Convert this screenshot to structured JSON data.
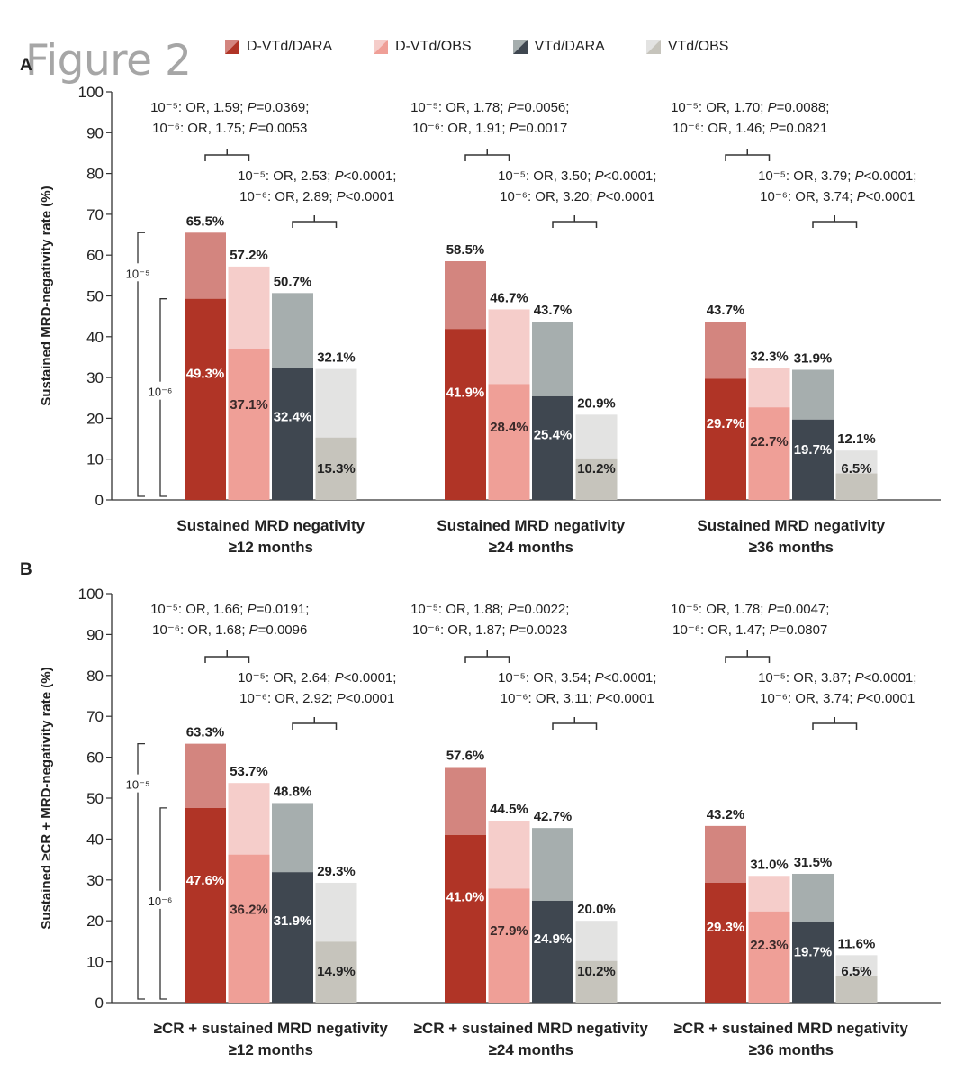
{
  "figure_title": "Figure 2",
  "colors": {
    "dvtd_dara_light": "#d3857f",
    "dvtd_dara_dark": "#b03426",
    "dvtd_obs_light": "#f5cdca",
    "dvtd_obs_dark": "#ef9f97",
    "vtd_dara_light": "#a6aeae",
    "vtd_dara_dark": "#3f4750",
    "vtd_obs_light": "#e3e3e2",
    "vtd_obs_dark": "#c6c4bc"
  },
  "legend": [
    {
      "label": "D-VTd/DARA",
      "color_light": "#d3857f",
      "color_dark": "#b03426"
    },
    {
      "label": "D-VTd/OBS",
      "color_light": "#f5cdca",
      "color_dark": "#ef9f97"
    },
    {
      "label": "VTd/DARA",
      "color_light": "#a6aeae",
      "color_dark": "#3f4750"
    },
    {
      "label": "VTd/OBS",
      "color_light": "#e3e3e2",
      "color_dark": "#c6c4bc"
    }
  ],
  "chart_data": [
    {
      "panel": "A",
      "type": "bar",
      "ylabel": "Sustained MRD-negativity rate (%)",
      "ylim": [
        0,
        100
      ],
      "yticks": [
        0,
        10,
        20,
        30,
        40,
        50,
        60,
        70,
        80,
        90,
        100
      ],
      "threshold_labels": {
        "outer": "10⁻⁵",
        "inner": "10⁻⁶"
      },
      "groups": [
        {
          "category": [
            "Sustained MRD negativity",
            "≥12 months"
          ],
          "series": [
            {
              "name": "D-VTd/DARA",
              "total": 65.5,
              "inner": 49.3,
              "total_label": "65.5%",
              "inner_label": "49.3%"
            },
            {
              "name": "D-VTd/OBS",
              "total": 57.2,
              "inner": 37.1,
              "total_label": "57.2%",
              "inner_label": "37.1%"
            },
            {
              "name": "VTd/DARA",
              "total": 50.7,
              "inner": 32.4,
              "total_label": "50.7%",
              "inner_label": "32.4%"
            },
            {
              "name": "VTd/OBS",
              "total": 32.1,
              "inner": 15.3,
              "total_label": "32.1%",
              "inner_label": "15.3%"
            }
          ],
          "stat1": {
            "l1a": "10⁻⁵: OR, 1.59; ",
            "l1p": "P",
            "l1b": "=0.0369;",
            "l2a": "10⁻⁶: OR, 1.75; ",
            "l2p": "P",
            "l2b": "=0.0053"
          },
          "stat2": {
            "l1a": "10⁻⁵: OR, 2.53; ",
            "l1p": "P",
            "l1b": "<0.0001;",
            "l2a": "10⁻⁶: OR, 2.89; ",
            "l2p": "P",
            "l2b": "<0.0001"
          }
        },
        {
          "category": [
            "Sustained MRD negativity",
            "≥24 months"
          ],
          "series": [
            {
              "name": "D-VTd/DARA",
              "total": 58.5,
              "inner": 41.9,
              "total_label": "58.5%",
              "inner_label": "41.9%"
            },
            {
              "name": "D-VTd/OBS",
              "total": 46.7,
              "inner": 28.4,
              "total_label": "46.7%",
              "inner_label": "28.4%"
            },
            {
              "name": "VTd/DARA",
              "total": 43.7,
              "inner": 25.4,
              "total_label": "43.7%",
              "inner_label": "25.4%"
            },
            {
              "name": "VTd/OBS",
              "total": 20.9,
              "inner": 10.2,
              "total_label": "20.9%",
              "inner_label": "10.2%"
            }
          ],
          "stat1": {
            "l1a": "10⁻⁵: OR, 1.78; ",
            "l1p": "P",
            "l1b": "=0.0056;",
            "l2a": "10⁻⁶: OR, 1.91; ",
            "l2p": "P",
            "l2b": "=0.0017"
          },
          "stat2": {
            "l1a": "10⁻⁵: OR, 3.50; ",
            "l1p": "P",
            "l1b": "<0.0001;",
            "l2a": "10⁻⁶: OR, 3.20; ",
            "l2p": "P",
            "l2b": "<0.0001"
          }
        },
        {
          "category": [
            "Sustained MRD negativity",
            "≥36 months"
          ],
          "series": [
            {
              "name": "D-VTd/DARA",
              "total": 43.7,
              "inner": 29.7,
              "total_label": "43.7%",
              "inner_label": "29.7%"
            },
            {
              "name": "D-VTd/OBS",
              "total": 32.3,
              "inner": 22.7,
              "total_label": "32.3%",
              "inner_label": "22.7%"
            },
            {
              "name": "VTd/DARA",
              "total": 31.9,
              "inner": 19.7,
              "total_label": "31.9%",
              "inner_label": "19.7%"
            },
            {
              "name": "VTd/OBS",
              "total": 12.1,
              "inner": 6.5,
              "total_label": "12.1%",
              "inner_label": "6.5%"
            }
          ],
          "stat1": {
            "l1a": "10⁻⁵: OR, 1.70; ",
            "l1p": "P",
            "l1b": "=0.0088;",
            "l2a": "10⁻⁶: OR, 1.46; ",
            "l2p": "P",
            "l2b": "=0.0821"
          },
          "stat2": {
            "l1a": "10⁻⁵: OR, 3.79; ",
            "l1p": "P",
            "l1b": "<0.0001;",
            "l2a": "10⁻⁶: OR, 3.74; ",
            "l2p": "P",
            "l2b": "<0.0001"
          }
        }
      ]
    },
    {
      "panel": "B",
      "type": "bar",
      "ylabel": "Sustained ≥CR + MRD-negativity rate (%)",
      "ylim": [
        0,
        100
      ],
      "yticks": [
        0,
        10,
        20,
        30,
        40,
        50,
        60,
        70,
        80,
        90,
        100
      ],
      "threshold_labels": {
        "outer": "10⁻⁵",
        "inner": "10⁻⁶"
      },
      "groups": [
        {
          "category": [
            "≥CR + sustained MRD negativity",
            "≥12 months"
          ],
          "series": [
            {
              "name": "D-VTd/DARA",
              "total": 63.3,
              "inner": 47.6,
              "total_label": "63.3%",
              "inner_label": "47.6%"
            },
            {
              "name": "D-VTd/OBS",
              "total": 53.7,
              "inner": 36.2,
              "total_label": "53.7%",
              "inner_label": "36.2%"
            },
            {
              "name": "VTd/DARA",
              "total": 48.8,
              "inner": 31.9,
              "total_label": "48.8%",
              "inner_label": "31.9%"
            },
            {
              "name": "VTd/OBS",
              "total": 29.3,
              "inner": 14.9,
              "total_label": "29.3%",
              "inner_label": "14.9%"
            }
          ],
          "stat1": {
            "l1a": "10⁻⁵: OR, 1.66; ",
            "l1p": "P",
            "l1b": "=0.0191;",
            "l2a": "10⁻⁶: OR, 1.68; ",
            "l2p": "P",
            "l2b": "=0.0096"
          },
          "stat2": {
            "l1a": "10⁻⁵: OR, 2.64; ",
            "l1p": "P",
            "l1b": "<0.0001;",
            "l2a": "10⁻⁶: OR, 2.92; ",
            "l2p": "P",
            "l2b": "<0.0001"
          }
        },
        {
          "category": [
            "≥CR + sustained MRD negativity",
            "≥24 months"
          ],
          "series": [
            {
              "name": "D-VTd/DARA",
              "total": 57.6,
              "inner": 41.0,
              "total_label": "57.6%",
              "inner_label": "41.0%"
            },
            {
              "name": "D-VTd/OBS",
              "total": 44.5,
              "inner": 27.9,
              "total_label": "44.5%",
              "inner_label": "27.9%"
            },
            {
              "name": "VTd/DARA",
              "total": 42.7,
              "inner": 24.9,
              "total_label": "42.7%",
              "inner_label": "24.9%"
            },
            {
              "name": "VTd/OBS",
              "total": 20.0,
              "inner": 10.2,
              "total_label": "20.0%",
              "inner_label": "10.2%"
            }
          ],
          "stat1": {
            "l1a": "10⁻⁵: OR, 1.88; ",
            "l1p": "P",
            "l1b": "=0.0022;",
            "l2a": "10⁻⁶: OR, 1.87; ",
            "l2p": "P",
            "l2b": "=0.0023"
          },
          "stat2": {
            "l1a": "10⁻⁵: OR, 3.54; ",
            "l1p": "P",
            "l1b": "<0.0001;",
            "l2a": "10⁻⁶: OR, 3.11; ",
            "l2p": "P",
            "l2b": "<0.0001"
          }
        },
        {
          "category": [
            "≥CR + sustained MRD negativity",
            "≥36 months"
          ],
          "series": [
            {
              "name": "D-VTd/DARA",
              "total": 43.2,
              "inner": 29.3,
              "total_label": "43.2%",
              "inner_label": "29.3%"
            },
            {
              "name": "D-VTd/OBS",
              "total": 31.0,
              "inner": 22.3,
              "total_label": "31.0%",
              "inner_label": "22.3%"
            },
            {
              "name": "VTd/DARA",
              "total": 31.5,
              "inner": 19.7,
              "total_label": "31.5%",
              "inner_label": "19.7%"
            },
            {
              "name": "VTd/OBS",
              "total": 11.6,
              "inner": 6.5,
              "total_label": "11.6%",
              "inner_label": "6.5%"
            }
          ],
          "stat1": {
            "l1a": "10⁻⁵: OR, 1.78; ",
            "l1p": "P",
            "l1b": "=0.0047;",
            "l2a": "10⁻⁶: OR, 1.47; ",
            "l2p": "P",
            "l2b": "=0.0807"
          },
          "stat2": {
            "l1a": "10⁻⁵: OR, 3.87; ",
            "l1p": "P",
            "l1b": "<0.0001;",
            "l2a": "10⁻⁶: OR, 3.74; ",
            "l2p": "P",
            "l2b": "<0.0001"
          }
        }
      ]
    }
  ]
}
